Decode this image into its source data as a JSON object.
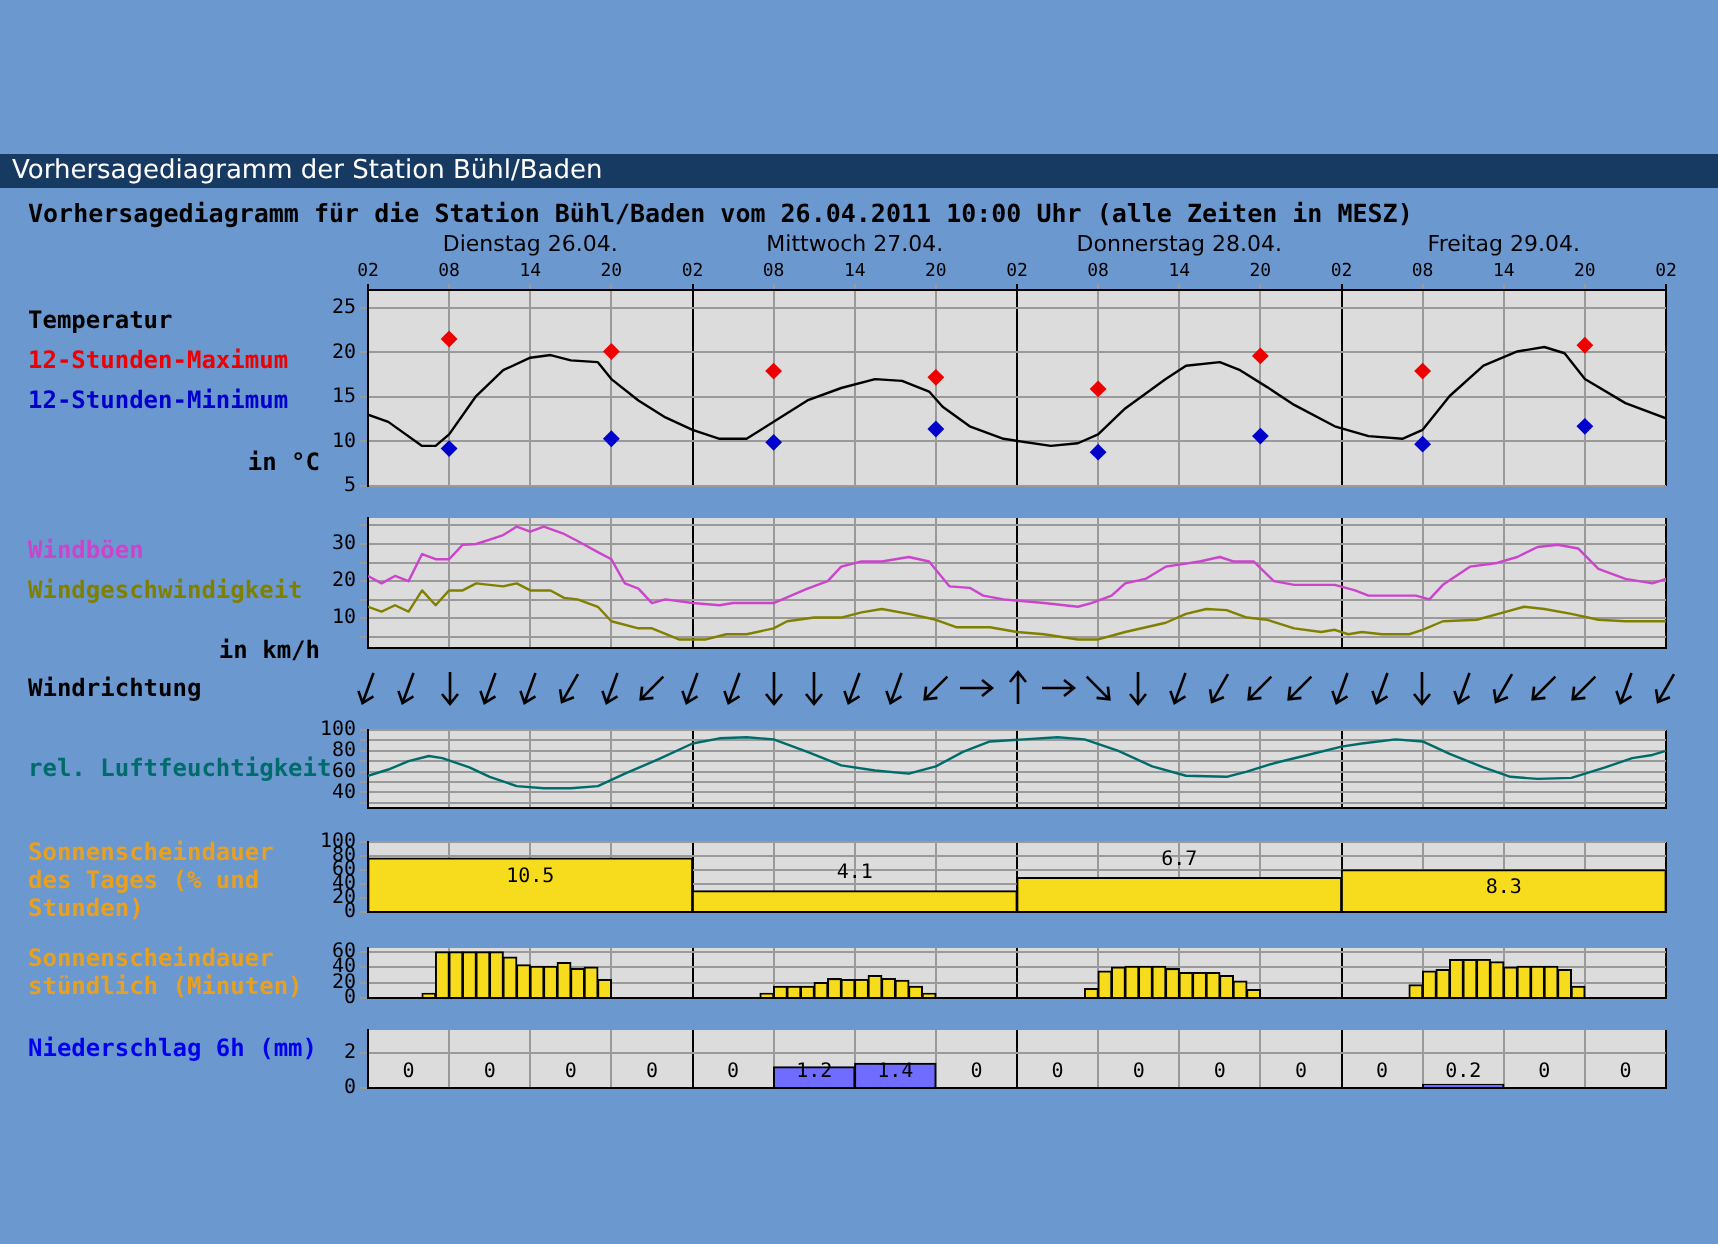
{
  "chart_data": [
    {
      "type": "line",
      "title": "Vorhersagediagramm der Station Bühl/Baden",
      "subtitle": "Vorhersagediagramm für die Station Bühl/Baden vom 26.04.2011 10:00 Uhr (alle Zeiten in MESZ)",
      "ylabel": "in °C",
      "legend": "left",
      "grid": true,
      "xlim": [
        "2011-04-26T02:00",
        "2011-04-30T02:00"
      ],
      "xticks": [
        {
          "value": "2011-04-26T02:00",
          "label": "02"
        },
        {
          "value": "2011-04-26T08:00",
          "label": "08"
        },
        {
          "value": "2011-04-26T14:00",
          "label": "14"
        },
        {
          "value": "2011-04-26T20:00",
          "label": "20"
        },
        {
          "value": "2011-04-27T02:00",
          "label": "02"
        },
        {
          "value": "2011-04-27T08:00",
          "label": "08"
        },
        {
          "value": "2011-04-27T14:00",
          "label": "14"
        },
        {
          "value": "2011-04-27T20:00",
          "label": "20"
        },
        {
          "value": "2011-04-28T02:00",
          "label": "02"
        },
        {
          "value": "2011-04-28T08:00",
          "label": "08"
        },
        {
          "value": "2011-04-28T14:00",
          "label": "14"
        },
        {
          "value": "2011-04-28T20:00",
          "label": "20"
        },
        {
          "value": "2011-04-29T02:00",
          "label": "02"
        },
        {
          "value": "2011-04-29T08:00",
          "label": "08"
        },
        {
          "value": "2011-04-29T14:00",
          "label": "14"
        },
        {
          "value": "2011-04-29T20:00",
          "label": "20"
        },
        {
          "value": "2011-04-30T02:00",
          "label": "02"
        }
      ],
      "x2lim": [
        "2011-04-26T02:00",
        "2011-04-30T02:00"
      ],
      "x2ticks": [
        {
          "value": "2011-04-26T14:00",
          "label": "Dienstag 26.04."
        },
        {
          "value": "2011-04-27T14:00",
          "label": "Mittwoch 27.04."
        },
        {
          "value": "2011-04-28T14:00",
          "label": "Donnerstag 28.04."
        },
        {
          "value": "2011-04-29T14:00",
          "label": "Freitag 29.04."
        }
      ],
      "ylim": [
        5,
        27
      ],
      "yticks": [
        5,
        10,
        15,
        20,
        25
      ],
      "series": [
        {
          "name": "Temperatur",
          "color": "#000000",
          "x": [
            "2011-04-26T02:00",
            "2011-04-26T03:30",
            "2011-04-26T06:00",
            "2011-04-26T07:00",
            "2011-04-26T08:00",
            "2011-04-26T10:00",
            "2011-04-26T12:00",
            "2011-04-26T14:00",
            "2011-04-26T15:30",
            "2011-04-26T17:00",
            "2011-04-26T19:00",
            "2011-04-26T20:00",
            "2011-04-26T22:00",
            "2011-04-27T00:00",
            "2011-04-27T02:00",
            "2011-04-27T04:00",
            "2011-04-27T06:00",
            "2011-04-27T08:00",
            "2011-04-27T10:30",
            "2011-04-27T13:00",
            "2011-04-27T15:30",
            "2011-04-27T17:30",
            "2011-04-27T19:30",
            "2011-04-27T20:30",
            "2011-04-27T22:30",
            "2011-04-28T01:00",
            "2011-04-28T04:30",
            "2011-04-28T06:30",
            "2011-04-28T08:00",
            "2011-04-28T10:00",
            "2011-04-28T13:00",
            "2011-04-28T14:30",
            "2011-04-28T17:00",
            "2011-04-28T18:30",
            "2011-04-28T20:30",
            "2011-04-28T22:30",
            "2011-04-29T01:30",
            "2011-04-29T04:00",
            "2011-04-29T06:30",
            "2011-04-29T08:00",
            "2011-04-29T10:00",
            "2011-04-29T12:30",
            "2011-04-29T15:00",
            "2011-04-29T17:00",
            "2011-04-29T18:30",
            "2011-04-29T20:00",
            "2011-04-29T23:00",
            "2011-04-30T02:00"
          ],
          "values": [
            13,
            12.2,
            9.5,
            9.5,
            10.8,
            15.1,
            18,
            19.4,
            19.7,
            19.1,
            18.9,
            17,
            14.6,
            12.7,
            11.3,
            10.3,
            10.3,
            12.2,
            14.6,
            16,
            17,
            16.8,
            15.6,
            13.9,
            11.7,
            10.3,
            9.5,
            9.8,
            10.8,
            13.7,
            17,
            18.5,
            18.9,
            18,
            16.1,
            14.1,
            11.7,
            10.6,
            10.3,
            11.3,
            15.1,
            18.5,
            20.1,
            20.6,
            19.9,
            17,
            14.3,
            12.6
          ]
        },
        {
          "name": "12-Stunden-Maximum",
          "type": "scatter",
          "marker": "diamond",
          "color": "#ee0000",
          "x": [
            "2011-04-26T08:00",
            "2011-04-26T20:00",
            "2011-04-27T08:00",
            "2011-04-27T20:00",
            "2011-04-28T08:00",
            "2011-04-28T20:00",
            "2011-04-29T08:00",
            "2011-04-29T20:00"
          ],
          "values": [
            21.5,
            20.1,
            17.9,
            17.2,
            15.9,
            19.6,
            17.9,
            20.8
          ]
        },
        {
          "name": "12-Stunden-Minimum",
          "type": "scatter",
          "marker": "diamond",
          "color": "#0000cc",
          "x": [
            "2011-04-26T08:00",
            "2011-04-26T20:00",
            "2011-04-27T08:00",
            "2011-04-27T20:00",
            "2011-04-28T08:00",
            "2011-04-28T20:00",
            "2011-04-29T08:00",
            "2011-04-29T20:00"
          ],
          "values": [
            9.2,
            10.3,
            9.9,
            11.4,
            8.8,
            10.6,
            9.7,
            11.7
          ]
        }
      ]
    },
    {
      "type": "line",
      "ylabel": "in km/h",
      "legend": "left",
      "grid": true,
      "tick_labels": "y",
      "xlim": [
        "2011-04-26T02:00",
        "2011-04-30T02:00"
      ],
      "xticks": [
        "2011-04-26T02:00",
        "2011-04-26T08:00",
        "2011-04-26T14:00",
        "2011-04-26T20:00",
        "2011-04-27T02:00",
        "2011-04-27T08:00",
        "2011-04-27T14:00",
        "2011-04-27T20:00",
        "2011-04-28T02:00",
        "2011-04-28T08:00",
        "2011-04-28T14:00",
        "2011-04-28T20:00",
        "2011-04-29T02:00",
        "2011-04-29T08:00",
        "2011-04-29T14:00",
        "2011-04-29T20:00",
        "2011-04-30T02:00"
      ],
      "ylim": [
        2,
        37
      ],
      "yticks": [
        {
          "value": 5,
          "label": null
        },
        10,
        {
          "value": 15,
          "label": null
        },
        20,
        {
          "value": 25,
          "label": null
        },
        30,
        {
          "value": 35,
          "label": null
        }
      ],
      "series": [
        {
          "name": "Windböen",
          "color": "#cc44cc",
          "x": [
            "2011-04-26T02:00",
            "2011-04-26T03:00",
            "2011-04-26T04:00",
            "2011-04-26T05:00",
            "2011-04-26T06:00",
            "2011-04-26T07:00",
            "2011-04-26T08:00",
            "2011-04-26T09:00",
            "2011-04-26T10:00",
            "2011-04-26T11:00",
            "2011-04-26T12:00",
            "2011-04-26T13:00",
            "2011-04-26T14:00",
            "2011-04-26T15:00",
            "2011-04-26T16:30",
            "2011-04-26T17:30",
            "2011-04-26T19:00",
            "2011-04-26T20:00",
            "2011-04-26T21:00",
            "2011-04-26T22:00",
            "2011-04-26T23:00",
            "2011-04-27T00:00",
            "2011-04-27T02:00",
            "2011-04-27T04:00",
            "2011-04-27T05:00",
            "2011-04-27T08:00",
            "2011-04-27T10:30",
            "2011-04-27T12:00",
            "2011-04-27T13:00",
            "2011-04-27T14:30",
            "2011-04-27T16:00",
            "2011-04-27T18:00",
            "2011-04-27T19:30",
            "2011-04-27T21:00",
            "2011-04-27T22:30",
            "2011-04-27T23:30",
            "2011-04-28T01:00",
            "2011-04-28T04:00",
            "2011-04-28T06:30",
            "2011-04-28T07:30",
            "2011-04-28T09:00",
            "2011-04-28T10:00",
            "2011-04-28T11:30",
            "2011-04-28T13:00",
            "2011-04-28T15:30",
            "2011-04-28T17:00",
            "2011-04-28T18:00",
            "2011-04-28T19:30",
            "2011-04-28T21:00",
            "2011-04-28T22:30",
            "2011-04-29T01:30",
            "2011-04-29T03:00",
            "2011-04-29T04:00",
            "2011-04-29T07:30",
            "2011-04-29T08:30",
            "2011-04-29T09:30",
            "2011-04-29T11:30",
            "2011-04-29T13:30",
            "2011-04-29T15:00",
            "2011-04-29T16:30",
            "2011-04-29T18:00",
            "2011-04-29T19:30",
            "2011-04-29T21:00",
            "2011-04-29T23:00",
            "2011-04-30T01:00",
            "2011-04-30T02:00"
          ],
          "values": [
            21.4,
            19.4,
            21.4,
            20,
            27.3,
            25.9,
            25.9,
            29.8,
            30,
            31.2,
            32.4,
            34.7,
            33.3,
            34.7,
            32.7,
            30.8,
            27.8,
            25.9,
            19.4,
            18,
            14.1,
            15.1,
            14.1,
            13.5,
            14.1,
            14.1,
            18,
            20,
            23.9,
            25.3,
            25.3,
            26.5,
            25.3,
            18.6,
            18.2,
            16.1,
            15.1,
            14.1,
            13.1,
            14.1,
            16.1,
            19.4,
            20.6,
            23.9,
            25.3,
            26.5,
            25.3,
            25.3,
            20,
            19,
            19,
            17.5,
            16.1,
            16.1,
            15.1,
            19,
            23.9,
            24.9,
            26.5,
            29.2,
            29.8,
            28.8,
            23.3,
            20.6,
            19.4,
            20.6
          ]
        },
        {
          "name": "Windgeschwindigkeit",
          "color": "#808000",
          "x": [
            "2011-04-26T02:00",
            "2011-04-26T03:00",
            "2011-04-26T04:00",
            "2011-04-26T05:00",
            "2011-04-26T06:00",
            "2011-04-26T07:00",
            "2011-04-26T08:00",
            "2011-04-26T09:00",
            "2011-04-26T10:00",
            "2011-04-26T12:00",
            "2011-04-26T13:00",
            "2011-04-26T14:00",
            "2011-04-26T15:30",
            "2011-04-26T16:30",
            "2011-04-26T17:30",
            "2011-04-26T19:00",
            "2011-04-26T20:00",
            "2011-04-26T22:00",
            "2011-04-26T23:00",
            "2011-04-27T01:00",
            "2011-04-27T03:00",
            "2011-04-27T04:30",
            "2011-04-27T06:00",
            "2011-04-27T08:00",
            "2011-04-27T09:00",
            "2011-04-27T11:00",
            "2011-04-27T13:00",
            "2011-04-27T14:30",
            "2011-04-27T16:00",
            "2011-04-27T18:00",
            "2011-04-27T20:00",
            "2011-04-27T21:30",
            "2011-04-28T00:00",
            "2011-04-28T02:00",
            "2011-04-28T04:00",
            "2011-04-28T06:30",
            "2011-04-28T08:00",
            "2011-04-28T10:00",
            "2011-04-28T13:00",
            "2011-04-28T14:30",
            "2011-04-28T16:00",
            "2011-04-28T17:30",
            "2011-04-28T19:00",
            "2011-04-28T20:30",
            "2011-04-28T22:30",
            "2011-04-29T00:30",
            "2011-04-29T01:30",
            "2011-04-29T02:30",
            "2011-04-29T03:30",
            "2011-04-29T05:00",
            "2011-04-29T07:00",
            "2011-04-29T08:00",
            "2011-04-29T09:30",
            "2011-04-29T12:00",
            "2011-04-29T14:00",
            "2011-04-29T15:30",
            "2011-04-29T17:00",
            "2011-04-29T19:00",
            "2011-04-29T21:00",
            "2011-04-29T23:00",
            "2011-04-30T02:00"
          ],
          "values": [
            13.1,
            11.8,
            13.5,
            11.8,
            17.5,
            13.5,
            17.5,
            17.5,
            19.4,
            18.6,
            19.4,
            17.5,
            17.5,
            15.5,
            15.1,
            13.1,
            9.2,
            7.3,
            7.3,
            4.3,
            4.3,
            5.7,
            5.7,
            7.3,
            9.2,
            10.2,
            10.2,
            11.6,
            12.5,
            11.2,
            9.6,
            7.6,
            7.6,
            6.3,
            5.7,
            4.3,
            4.3,
            6.3,
            8.8,
            11.2,
            12.5,
            12.2,
            10.2,
            9.6,
            7.3,
            6.3,
            6.9,
            5.7,
            6.3,
            5.7,
            5.7,
            6.9,
            9.2,
            9.6,
            11.6,
            13.1,
            12.5,
            11.2,
            9.6,
            9.2,
            9.2
          ]
        }
      ]
    },
    {
      "type": "other",
      "title": "Windrichtung"
    },
    {
      "type": "line",
      "legend": "left",
      "grid": true,
      "tick_labels": "y",
      "xlim": [
        "2011-04-26T02:00",
        "2011-04-30T02:00"
      ],
      "xticks": [
        "2011-04-26T02:00",
        "2011-04-26T08:00",
        "2011-04-26T14:00",
        "2011-04-26T20:00",
        "2011-04-27T02:00",
        "2011-04-27T08:00",
        "2011-04-27T14:00",
        "2011-04-27T20:00",
        "2011-04-28T02:00",
        "2011-04-28T08:00",
        "2011-04-28T14:00",
        "2011-04-28T20:00",
        "2011-04-29T02:00",
        "2011-04-29T08:00",
        "2011-04-29T14:00",
        "2011-04-29T20:00",
        "2011-04-30T02:00"
      ],
      "ylim": [
        25,
        100
      ],
      "yticks": [
        {
          "value": 30,
          "label": null
        },
        40,
        {
          "value": 50,
          "label": null
        },
        60,
        {
          "value": 70,
          "label": null
        },
        80,
        {
          "value": 90,
          "label": null
        },
        100
      ],
      "series": [
        {
          "name": "rel. Luftfeuchtigkeit",
          "color": "#006b6b",
          "x": [
            "2011-04-26T02:00",
            "2011-04-26T03:30",
            "2011-04-26T05:00",
            "2011-04-26T06:30",
            "2011-04-26T07:30",
            "2011-04-26T09:30",
            "2011-04-26T11:00",
            "2011-04-26T13:00",
            "2011-04-26T15:00",
            "2011-04-26T17:00",
            "2011-04-26T19:00",
            "2011-04-26T21:00",
            "2011-04-26T23:30",
            "2011-04-27T02:00",
            "2011-04-27T04:00",
            "2011-04-27T06:00",
            "2011-04-27T08:00",
            "2011-04-27T10:30",
            "2011-04-27T13:00",
            "2011-04-27T15:30",
            "2011-04-27T18:00",
            "2011-04-27T20:00",
            "2011-04-27T22:00",
            "2011-04-28T00:00",
            "2011-04-28T02:30",
            "2011-04-28T05:00",
            "2011-04-28T07:00",
            "2011-04-28T09:30",
            "2011-04-28T12:00",
            "2011-04-28T14:30",
            "2011-04-28T17:30",
            "2011-04-28T19:00",
            "2011-04-28T21:00",
            "2011-04-28T23:30",
            "2011-04-29T02:00",
            "2011-04-29T03:30",
            "2011-04-29T06:00",
            "2011-04-29T08:00",
            "2011-04-29T10:00",
            "2011-04-29T12:30",
            "2011-04-29T14:30",
            "2011-04-29T16:30",
            "2011-04-29T19:00",
            "2011-04-29T21:30",
            "2011-04-29T23:30",
            "2011-04-30T01:00",
            "2011-04-30T02:00"
          ],
          "values": [
            56,
            62,
            70,
            75,
            73,
            64,
            55,
            46,
            44,
            44,
            46,
            58,
            72,
            87,
            92,
            93,
            91,
            79,
            66,
            61,
            58,
            65,
            79,
            89,
            91,
            93,
            91,
            80,
            65,
            56,
            55,
            60,
            68,
            76,
            84,
            87,
            91,
            89,
            77,
            64,
            55,
            53,
            54,
            64,
            73,
            76,
            80
          ]
        }
      ]
    },
    {
      "type": "bar",
      "ylabel": "Sonnenscheindauer des Tages (% und Stunden)",
      "grid": true,
      "tick_labels": "y",
      "xlim": [
        "2011-04-26T02:00",
        "2011-04-30T02:00"
      ],
      "xticks": [
        "2011-04-26T02:00",
        "2011-04-26T08:00",
        "2011-04-26T14:00",
        "2011-04-26T20:00",
        "2011-04-27T02:00",
        "2011-04-27T08:00",
        "2011-04-27T14:00",
        "2011-04-27T20:00",
        "2011-04-28T02:00",
        "2011-04-28T08:00",
        "2011-04-28T14:00",
        "2011-04-28T20:00",
        "2011-04-29T02:00",
        "2011-04-29T08:00",
        "2011-04-29T14:00",
        "2011-04-29T20:00",
        "2011-04-30T02:00"
      ],
      "ylim": [
        0,
        100
      ],
      "yticks": [
        0,
        20,
        40,
        60,
        80,
        100
      ],
      "x": [
        "2011-04-26T14:00",
        "2011-04-27T14:00",
        "2011-04-28T14:00",
        "2011-04-29T14:00"
      ],
      "values": [
        77,
        30,
        49,
        60
      ],
      "color": "#f7dc1e",
      "annotations": [
        "10.5",
        "4.1",
        "6.7",
        "8.3"
      ]
    },
    {
      "type": "bar",
      "ylabel": "Sonnenscheindauer stündlich (Minuten)",
      "grid": true,
      "tick_labels": "y",
      "xlim": [
        "2011-04-26T02:00",
        "2011-04-30T02:00"
      ],
      "xticks": [
        "2011-04-26T02:00",
        "2011-04-26T08:00",
        "2011-04-26T14:00",
        "2011-04-26T20:00",
        "2011-04-27T02:00",
        "2011-04-27T08:00",
        "2011-04-27T14:00",
        "2011-04-27T20:00",
        "2011-04-28T02:00",
        "2011-04-28T08:00",
        "2011-04-28T14:00",
        "2011-04-28T20:00",
        "2011-04-29T02:00",
        "2011-04-29T08:00",
        "2011-04-29T14:00",
        "2011-04-29T20:00",
        "2011-04-30T02:00"
      ],
      "ylim": [
        0,
        65
      ],
      "yticks": [
        0,
        20,
        40,
        60
      ],
      "x": [
        "2011-04-26T06:30",
        "2011-04-26T07:30",
        "2011-04-26T08:30",
        "2011-04-26T09:30",
        "2011-04-26T10:30",
        "2011-04-26T11:30",
        "2011-04-26T12:30",
        "2011-04-26T13:30",
        "2011-04-26T14:30",
        "2011-04-26T15:30",
        "2011-04-26T16:30",
        "2011-04-26T17:30",
        "2011-04-26T18:30",
        "2011-04-26T19:30",
        "2011-04-27T07:30",
        "2011-04-27T08:30",
        "2011-04-27T09:30",
        "2011-04-27T10:30",
        "2011-04-27T11:30",
        "2011-04-27T12:30",
        "2011-04-27T13:30",
        "2011-04-27T14:30",
        "2011-04-27T15:30",
        "2011-04-27T16:30",
        "2011-04-27T17:30",
        "2011-04-27T18:30",
        "2011-04-27T19:30",
        "2011-04-28T07:30",
        "2011-04-28T08:30",
        "2011-04-28T09:30",
        "2011-04-28T10:30",
        "2011-04-28T11:30",
        "2011-04-28T12:30",
        "2011-04-28T13:30",
        "2011-04-28T14:30",
        "2011-04-28T15:30",
        "2011-04-28T16:30",
        "2011-04-28T17:30",
        "2011-04-28T18:30",
        "2011-04-28T19:30",
        "2011-04-29T07:30",
        "2011-04-29T08:30",
        "2011-04-29T09:30",
        "2011-04-29T10:30",
        "2011-04-29T11:30",
        "2011-04-29T12:30",
        "2011-04-29T13:30",
        "2011-04-29T14:30",
        "2011-04-29T15:30",
        "2011-04-29T16:30",
        "2011-04-29T17:30",
        "2011-04-29T18:30",
        "2011-04-29T19:30"
      ],
      "values": [
        6,
        60,
        60,
        60,
        60,
        60,
        53,
        43,
        41,
        41,
        46,
        38,
        40,
        24,
        6,
        15,
        15,
        15,
        20,
        25,
        24,
        24,
        29,
        25,
        23,
        15,
        6,
        12,
        35,
        40,
        41,
        41,
        41,
        38,
        33,
        33,
        33,
        29,
        22,
        11,
        17,
        35,
        37,
        50,
        50,
        50,
        47,
        40,
        41,
        41,
        41,
        37,
        15
      ],
      "color": "#f7dc1e"
    },
    {
      "type": "bar",
      "ylabel": "Niederschlag 6h (mm)",
      "grid": true,
      "tick_labels": "y",
      "data_labels": true,
      "xlim": [
        "2011-04-26T02:00",
        "2011-04-30T02:00"
      ],
      "xticks": [
        "2011-04-26T02:00",
        "2011-04-26T08:00",
        "2011-04-26T14:00",
        "2011-04-26T20:00",
        "2011-04-27T02:00",
        "2011-04-27T08:00",
        "2011-04-27T14:00",
        "2011-04-27T20:00",
        "2011-04-28T02:00",
        "2011-04-28T08:00",
        "2011-04-28T14:00",
        "2011-04-28T20:00",
        "2011-04-29T02:00",
        "2011-04-29T08:00",
        "2011-04-29T14:00",
        "2011-04-29T20:00",
        "2011-04-30T02:00"
      ],
      "ylim": [
        0,
        3.3
      ],
      "yticks": [
        0,
        2
      ],
      "x": [
        "2011-04-26T05:00",
        "2011-04-26T11:00",
        "2011-04-26T17:00",
        "2011-04-26T23:00",
        "2011-04-27T05:00",
        "2011-04-27T11:00",
        "2011-04-27T17:00",
        "2011-04-27T23:00",
        "2011-04-28T05:00",
        "2011-04-28T11:00",
        "2011-04-28T17:00",
        "2011-04-28T23:00",
        "2011-04-29T05:00",
        "2011-04-29T11:00",
        "2011-04-29T17:00",
        "2011-04-29T23:00"
      ],
      "values": [
        0,
        0,
        0,
        0,
        0,
        1.2,
        1.4,
        0,
        0,
        0,
        0,
        0,
        0,
        0.2,
        0,
        0
      ],
      "color": "#6f6cff"
    }
  ]
}
